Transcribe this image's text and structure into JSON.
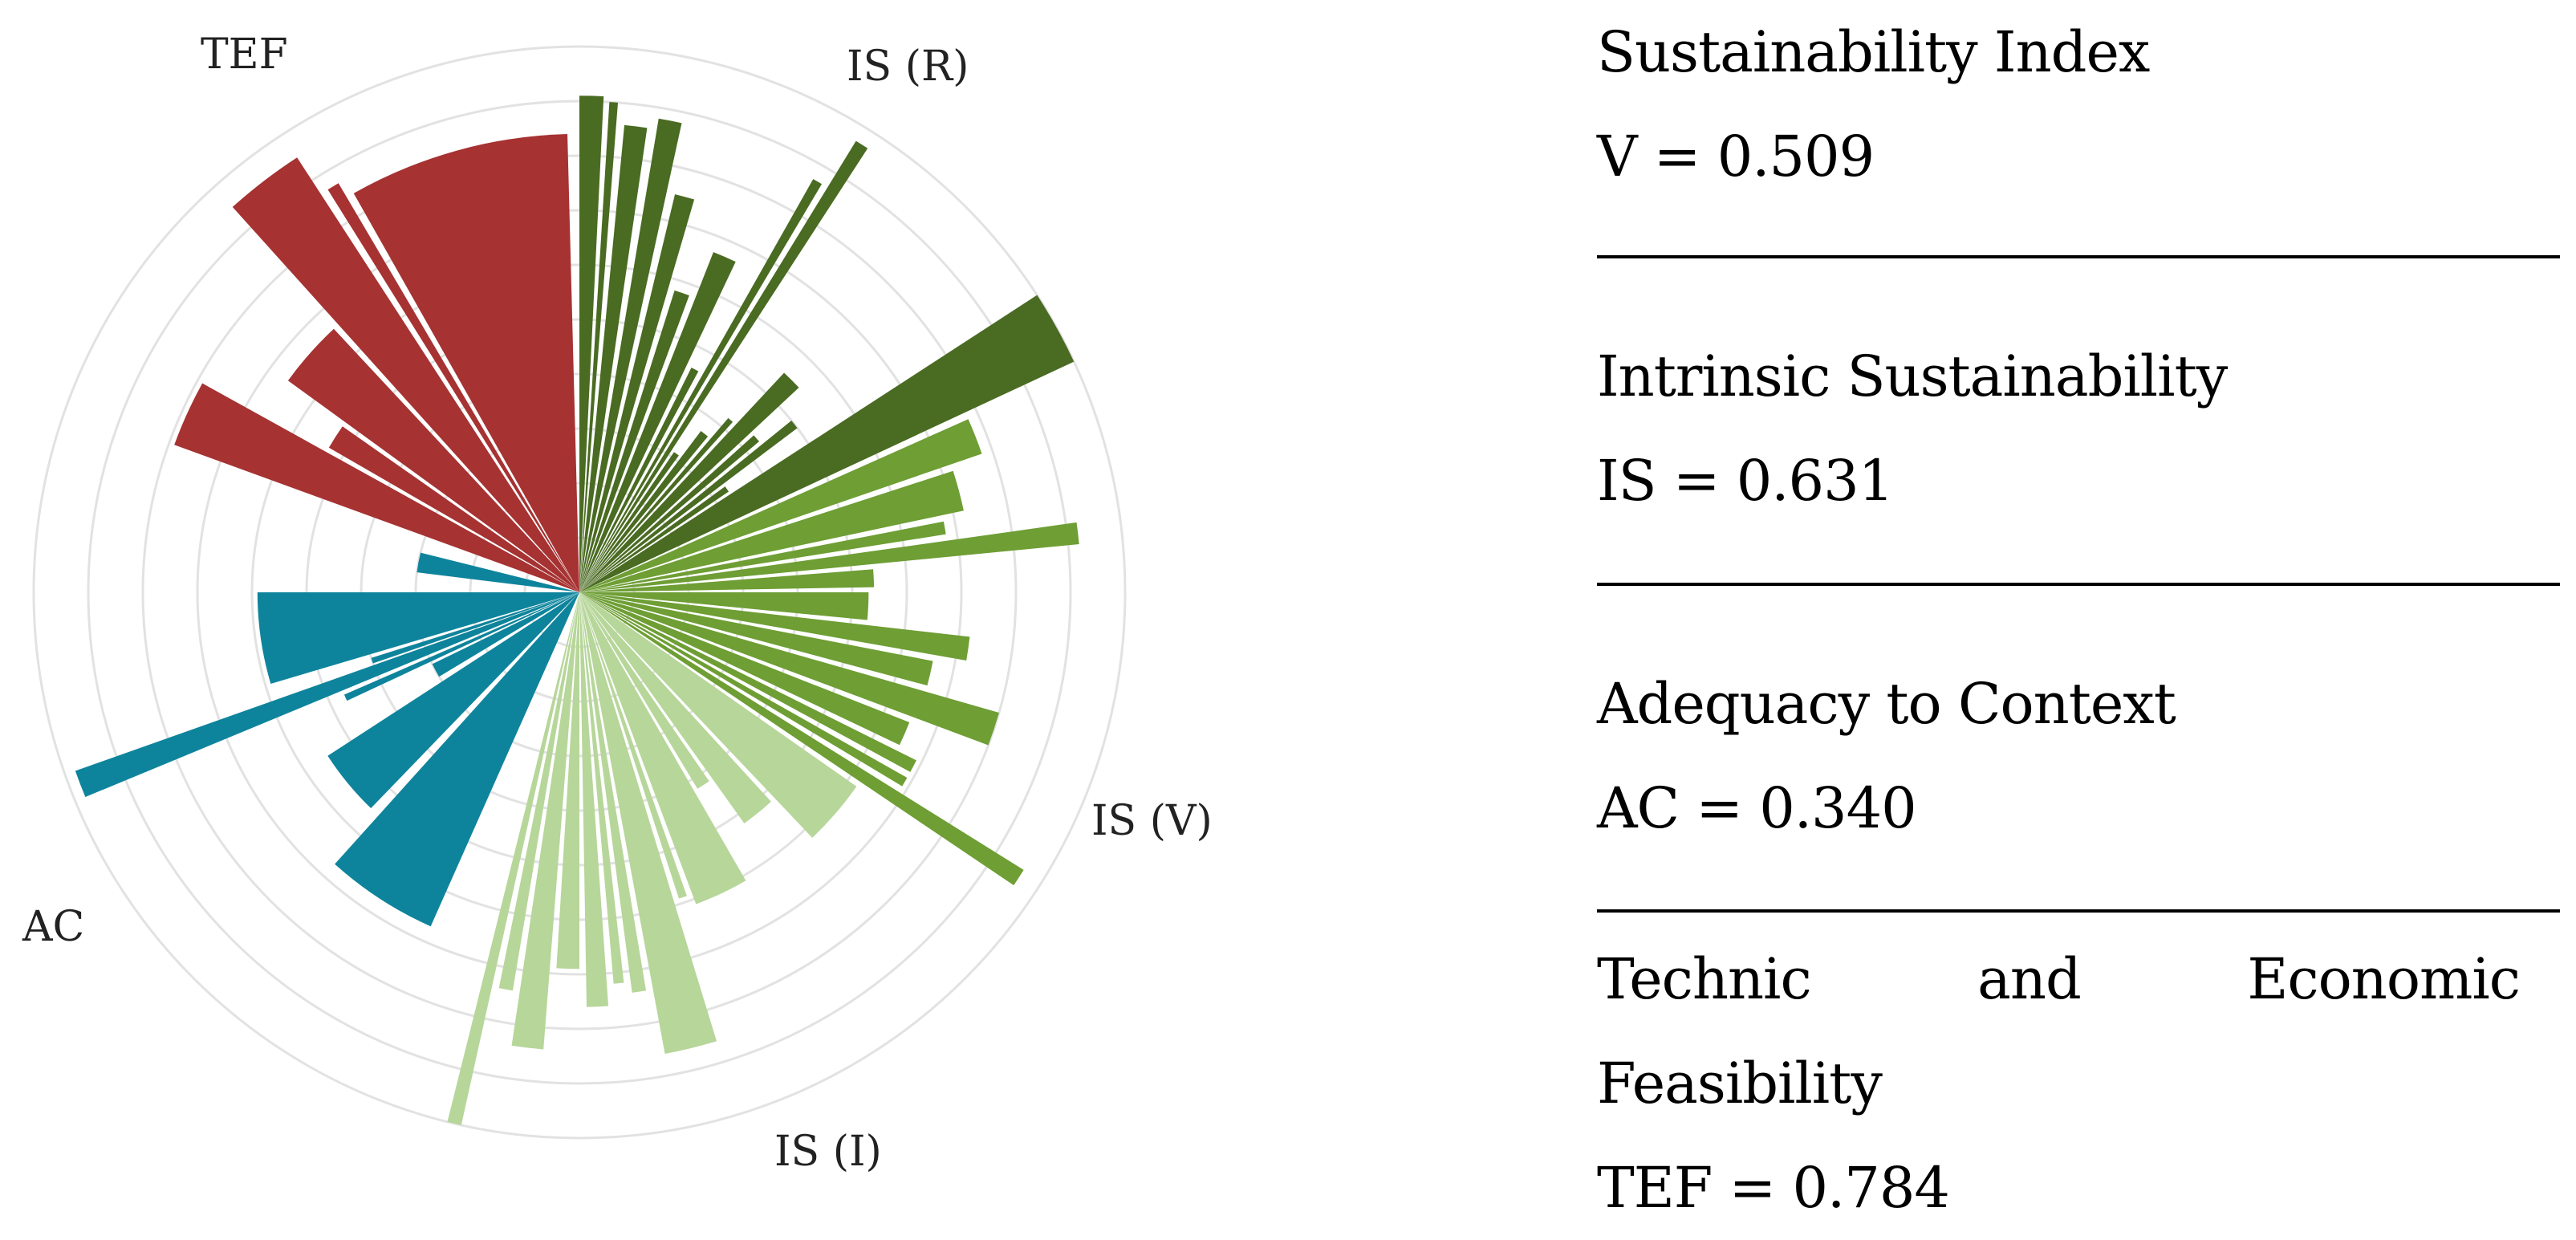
{
  "chart_data": {
    "type": "polar-bar",
    "scale_max": 1.0,
    "grid_rings": [
      0.1,
      0.2,
      0.3,
      0.4,
      0.5,
      0.6,
      0.7,
      0.8,
      0.9,
      1.0
    ],
    "colors": {
      "TEF": "#a63232",
      "IS_R": "#4a6b22",
      "IS_V": "#6e9e34",
      "IS_I": "#b7d69a",
      "AC": "#0e849c"
    },
    "group_labels": [
      {
        "id": "TEF",
        "text": "TEF"
      },
      {
        "id": "IS_R",
        "text": "IS (R)"
      },
      {
        "id": "IS_V",
        "text": "IS (V)"
      },
      {
        "id": "IS_I",
        "text": "IS (I)"
      },
      {
        "id": "AC",
        "text": "AC"
      }
    ],
    "bars": [
      {
        "group": "IS_R",
        "start": 0.0,
        "end": 2.8,
        "value": 0.91
      },
      {
        "group": "IS_R",
        "start": 3.5,
        "end": 4.5,
        "value": 0.9
      },
      {
        "group": "IS_R",
        "start": 5.5,
        "end": 8.3,
        "value": 0.86
      },
      {
        "group": "IS_R",
        "start": 9.5,
        "end": 12.3,
        "value": 0.88
      },
      {
        "group": "IS_R",
        "start": 13.5,
        "end": 16.3,
        "value": 0.75
      },
      {
        "group": "IS_R",
        "start": 17.5,
        "end": 20.3,
        "value": 0.58
      },
      {
        "group": "IS_R",
        "start": 21.5,
        "end": 25.3,
        "value": 0.67
      },
      {
        "group": "IS_R",
        "start": 26.5,
        "end": 28.3,
        "value": 0.46
      },
      {
        "group": "IS_R",
        "start": 29.5,
        "end": 30.7,
        "value": 0.87
      },
      {
        "group": "IS_R",
        "start": 31.5,
        "end": 33.0,
        "value": 0.97
      },
      {
        "group": "IS_R",
        "start": 34.0,
        "end": 36.0,
        "value": 0.31
      },
      {
        "group": "IS_R",
        "start": 37.0,
        "end": 39.5,
        "value": 0.37
      },
      {
        "group": "IS_R",
        "start": 40.5,
        "end": 42.0,
        "value": 0.42
      },
      {
        "group": "IS_R",
        "start": 43.0,
        "end": 47.0,
        "value": 0.55
      },
      {
        "group": "IS_R",
        "start": 48.0,
        "end": 50.0,
        "value": 0.43
      },
      {
        "group": "IS_R",
        "start": 51.0,
        "end": 53.0,
        "value": 0.5
      },
      {
        "group": "IS_R",
        "start": 54.0,
        "end": 56.0,
        "value": 0.33
      },
      {
        "group": "IS_R",
        "start": 57.0,
        "end": 65.0,
        "value": 1.0
      },
      {
        "group": "IS_V",
        "start": 66.0,
        "end": 71.0,
        "value": 0.78
      },
      {
        "group": "IS_V",
        "start": 72.0,
        "end": 78.0,
        "value": 0.72
      },
      {
        "group": "IS_V",
        "start": 79.0,
        "end": 81.0,
        "value": 0.68
      },
      {
        "group": "IS_V",
        "start": 82.0,
        "end": 84.5,
        "value": 0.92
      },
      {
        "group": "IS_V",
        "start": 85.5,
        "end": 89.0,
        "value": 0.54
      },
      {
        "group": "IS_V",
        "start": 90.0,
        "end": 95.5,
        "value": 0.53
      },
      {
        "group": "IS_V",
        "start": 96.5,
        "end": 100.0,
        "value": 0.72
      },
      {
        "group": "IS_V",
        "start": 101.0,
        "end": 105.0,
        "value": 0.66
      },
      {
        "group": "IS_V",
        "start": 106.0,
        "end": 110.5,
        "value": 0.8
      },
      {
        "group": "IS_V",
        "start": 111.5,
        "end": 115.5,
        "value": 0.65
      },
      {
        "group": "IS_V",
        "start": 116.5,
        "end": 118.5,
        "value": 0.69
      },
      {
        "group": "IS_V",
        "start": 119.5,
        "end": 121.0,
        "value": 0.69
      },
      {
        "group": "IS_V",
        "start": 122.0,
        "end": 124.0,
        "value": 0.96
      },
      {
        "group": "IS_I",
        "start": 125.0,
        "end": 136.5,
        "value": 0.62
      },
      {
        "group": "IS_I",
        "start": 137.5,
        "end": 144.5,
        "value": 0.52
      },
      {
        "group": "IS_I",
        "start": 145.5,
        "end": 149.0,
        "value": 0.42
      },
      {
        "group": "IS_I",
        "start": 150.0,
        "end": 159.5,
        "value": 0.61
      },
      {
        "group": "IS_I",
        "start": 160.5,
        "end": 162.0,
        "value": 0.59
      },
      {
        "group": "IS_I",
        "start": 163.0,
        "end": 169.5,
        "value": 0.86
      },
      {
        "group": "IS_I",
        "start": 170.5,
        "end": 172.5,
        "value": 0.74
      },
      {
        "group": "IS_I",
        "start": 173.5,
        "end": 175.0,
        "value": 0.72
      },
      {
        "group": "IS_I",
        "start": 176.0,
        "end": 179.0,
        "value": 0.76
      },
      {
        "group": "IS_I",
        "start": 180.0,
        "end": 183.5,
        "value": 0.69
      },
      {
        "group": "IS_I",
        "start": 184.5,
        "end": 188.5,
        "value": 0.84
      },
      {
        "group": "IS_I",
        "start": 189.5,
        "end": 191.5,
        "value": 0.74
      },
      {
        "group": "IS_I",
        "start": 192.5,
        "end": 194.0,
        "value": 1.0
      },
      {
        "group": "AC",
        "start": 204.0,
        "end": 222.0,
        "value": 0.67
      },
      {
        "group": "AC",
        "start": 224.0,
        "end": 237.0,
        "value": 0.55
      },
      {
        "group": "AC",
        "start": 239.0,
        "end": 244.0,
        "value": 0.3
      },
      {
        "group": "AC",
        "start": 245.0,
        "end": 246.5,
        "value": 0.47
      },
      {
        "group": "AC",
        "start": 247.5,
        "end": 250.5,
        "value": 0.98
      },
      {
        "group": "AC",
        "start": 251.0,
        "end": 252.5,
        "value": 0.4
      },
      {
        "group": "AC",
        "start": 253.5,
        "end": 270.0,
        "value": 0.59
      },
      {
        "group": "AC",
        "start": 277.0,
        "end": 284.0,
        "value": 0.3
      },
      {
        "group": "TEF",
        "start": 290.0,
        "end": 299.0,
        "value": 0.79
      },
      {
        "group": "TEF",
        "start": 300.0,
        "end": 305.0,
        "value": 0.53
      },
      {
        "group": "TEF",
        "start": 306.0,
        "end": 317.0,
        "value": 0.66
      },
      {
        "group": "TEF",
        "start": 318.0,
        "end": 327.0,
        "value": 0.95
      },
      {
        "group": "TEF",
        "start": 328.0,
        "end": 329.5,
        "value": 0.87
      },
      {
        "group": "TEF",
        "start": 330.5,
        "end": 358.5,
        "value": 0.84
      }
    ]
  },
  "panel": {
    "sustainability_index": {
      "title": "Sustainability Index",
      "value": "V = 0.509"
    },
    "intrinsic": {
      "title": "Intrinsic Sustainability",
      "value": "IS = 0.631"
    },
    "adequacy": {
      "title": "Adequacy to Context",
      "value": "AC = 0.340"
    },
    "tef": {
      "title_words": [
        "Technic",
        "and",
        "Economic"
      ],
      "title_line2": "Feasibility",
      "value": "TEF = 0.784"
    }
  }
}
